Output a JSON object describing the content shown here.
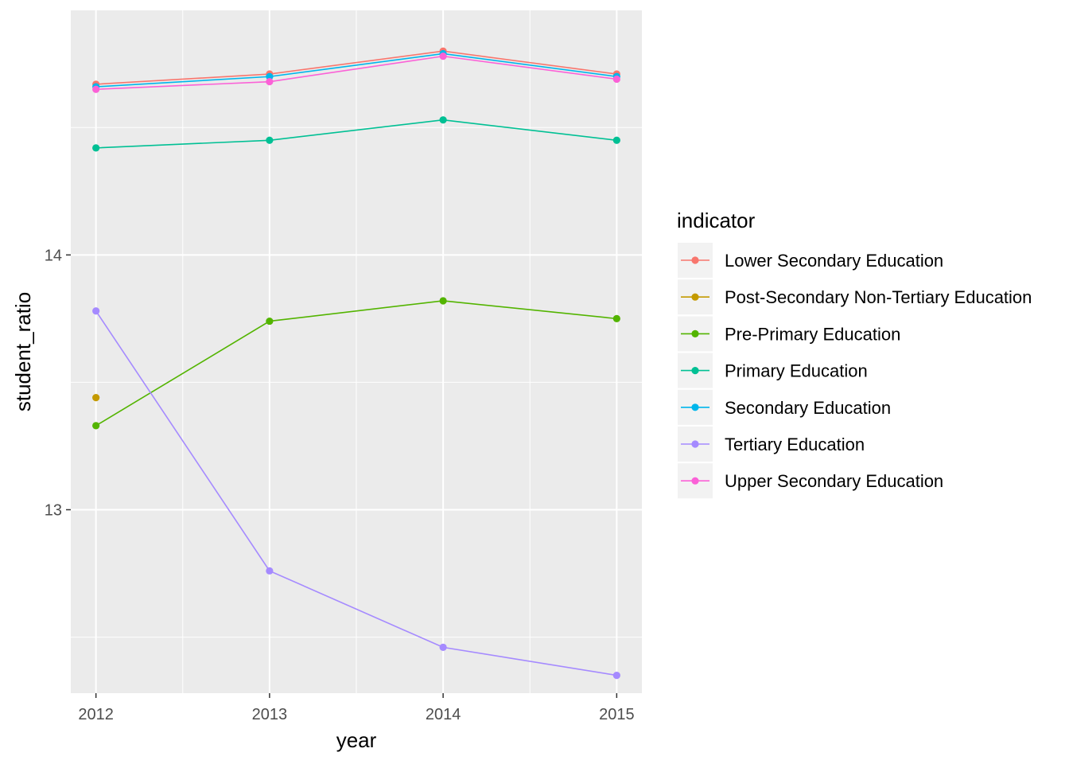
{
  "chart_data": {
    "type": "line",
    "xlabel": "year",
    "ylabel": "student_ratio",
    "x": [
      2012,
      2013,
      2014,
      2015
    ],
    "x_tick_labels": [
      "2012",
      "2013",
      "2014",
      "2015"
    ],
    "xlim": [
      2011.855,
      2015.145
    ],
    "ylim": [
      12.28,
      14.96
    ],
    "y_major_ticks": [
      13,
      14
    ],
    "y_tick_labels": [
      "13",
      "14"
    ],
    "y_minor_ticks": [
      12.5,
      13.5,
      14.5
    ],
    "grid": true,
    "legend": {
      "title": "indicator",
      "position": "right"
    },
    "series": [
      {
        "name": "Lower Secondary Education",
        "color": "#F8766D",
        "values": [
          14.67,
          14.71,
          14.8,
          14.71
        ]
      },
      {
        "name": "Post-Secondary Non-Tertiary Education",
        "color": "#C49A00",
        "values": [
          13.44,
          null,
          null,
          null
        ]
      },
      {
        "name": "Pre-Primary Education",
        "color": "#53B400",
        "values": [
          13.33,
          13.74,
          13.82,
          13.75
        ]
      },
      {
        "name": "Primary Education",
        "color": "#00C094",
        "values": [
          14.42,
          14.45,
          14.53,
          14.45
        ]
      },
      {
        "name": "Secondary Education",
        "color": "#00B6EB",
        "values": [
          14.66,
          14.7,
          14.79,
          14.7
        ]
      },
      {
        "name": "Tertiary Education",
        "color": "#A58AFF",
        "values": [
          13.78,
          12.76,
          12.46,
          12.35
        ]
      },
      {
        "name": "Upper Secondary Education",
        "color": "#FB61D7",
        "values": [
          14.65,
          14.68,
          14.78,
          14.69
        ]
      }
    ]
  }
}
